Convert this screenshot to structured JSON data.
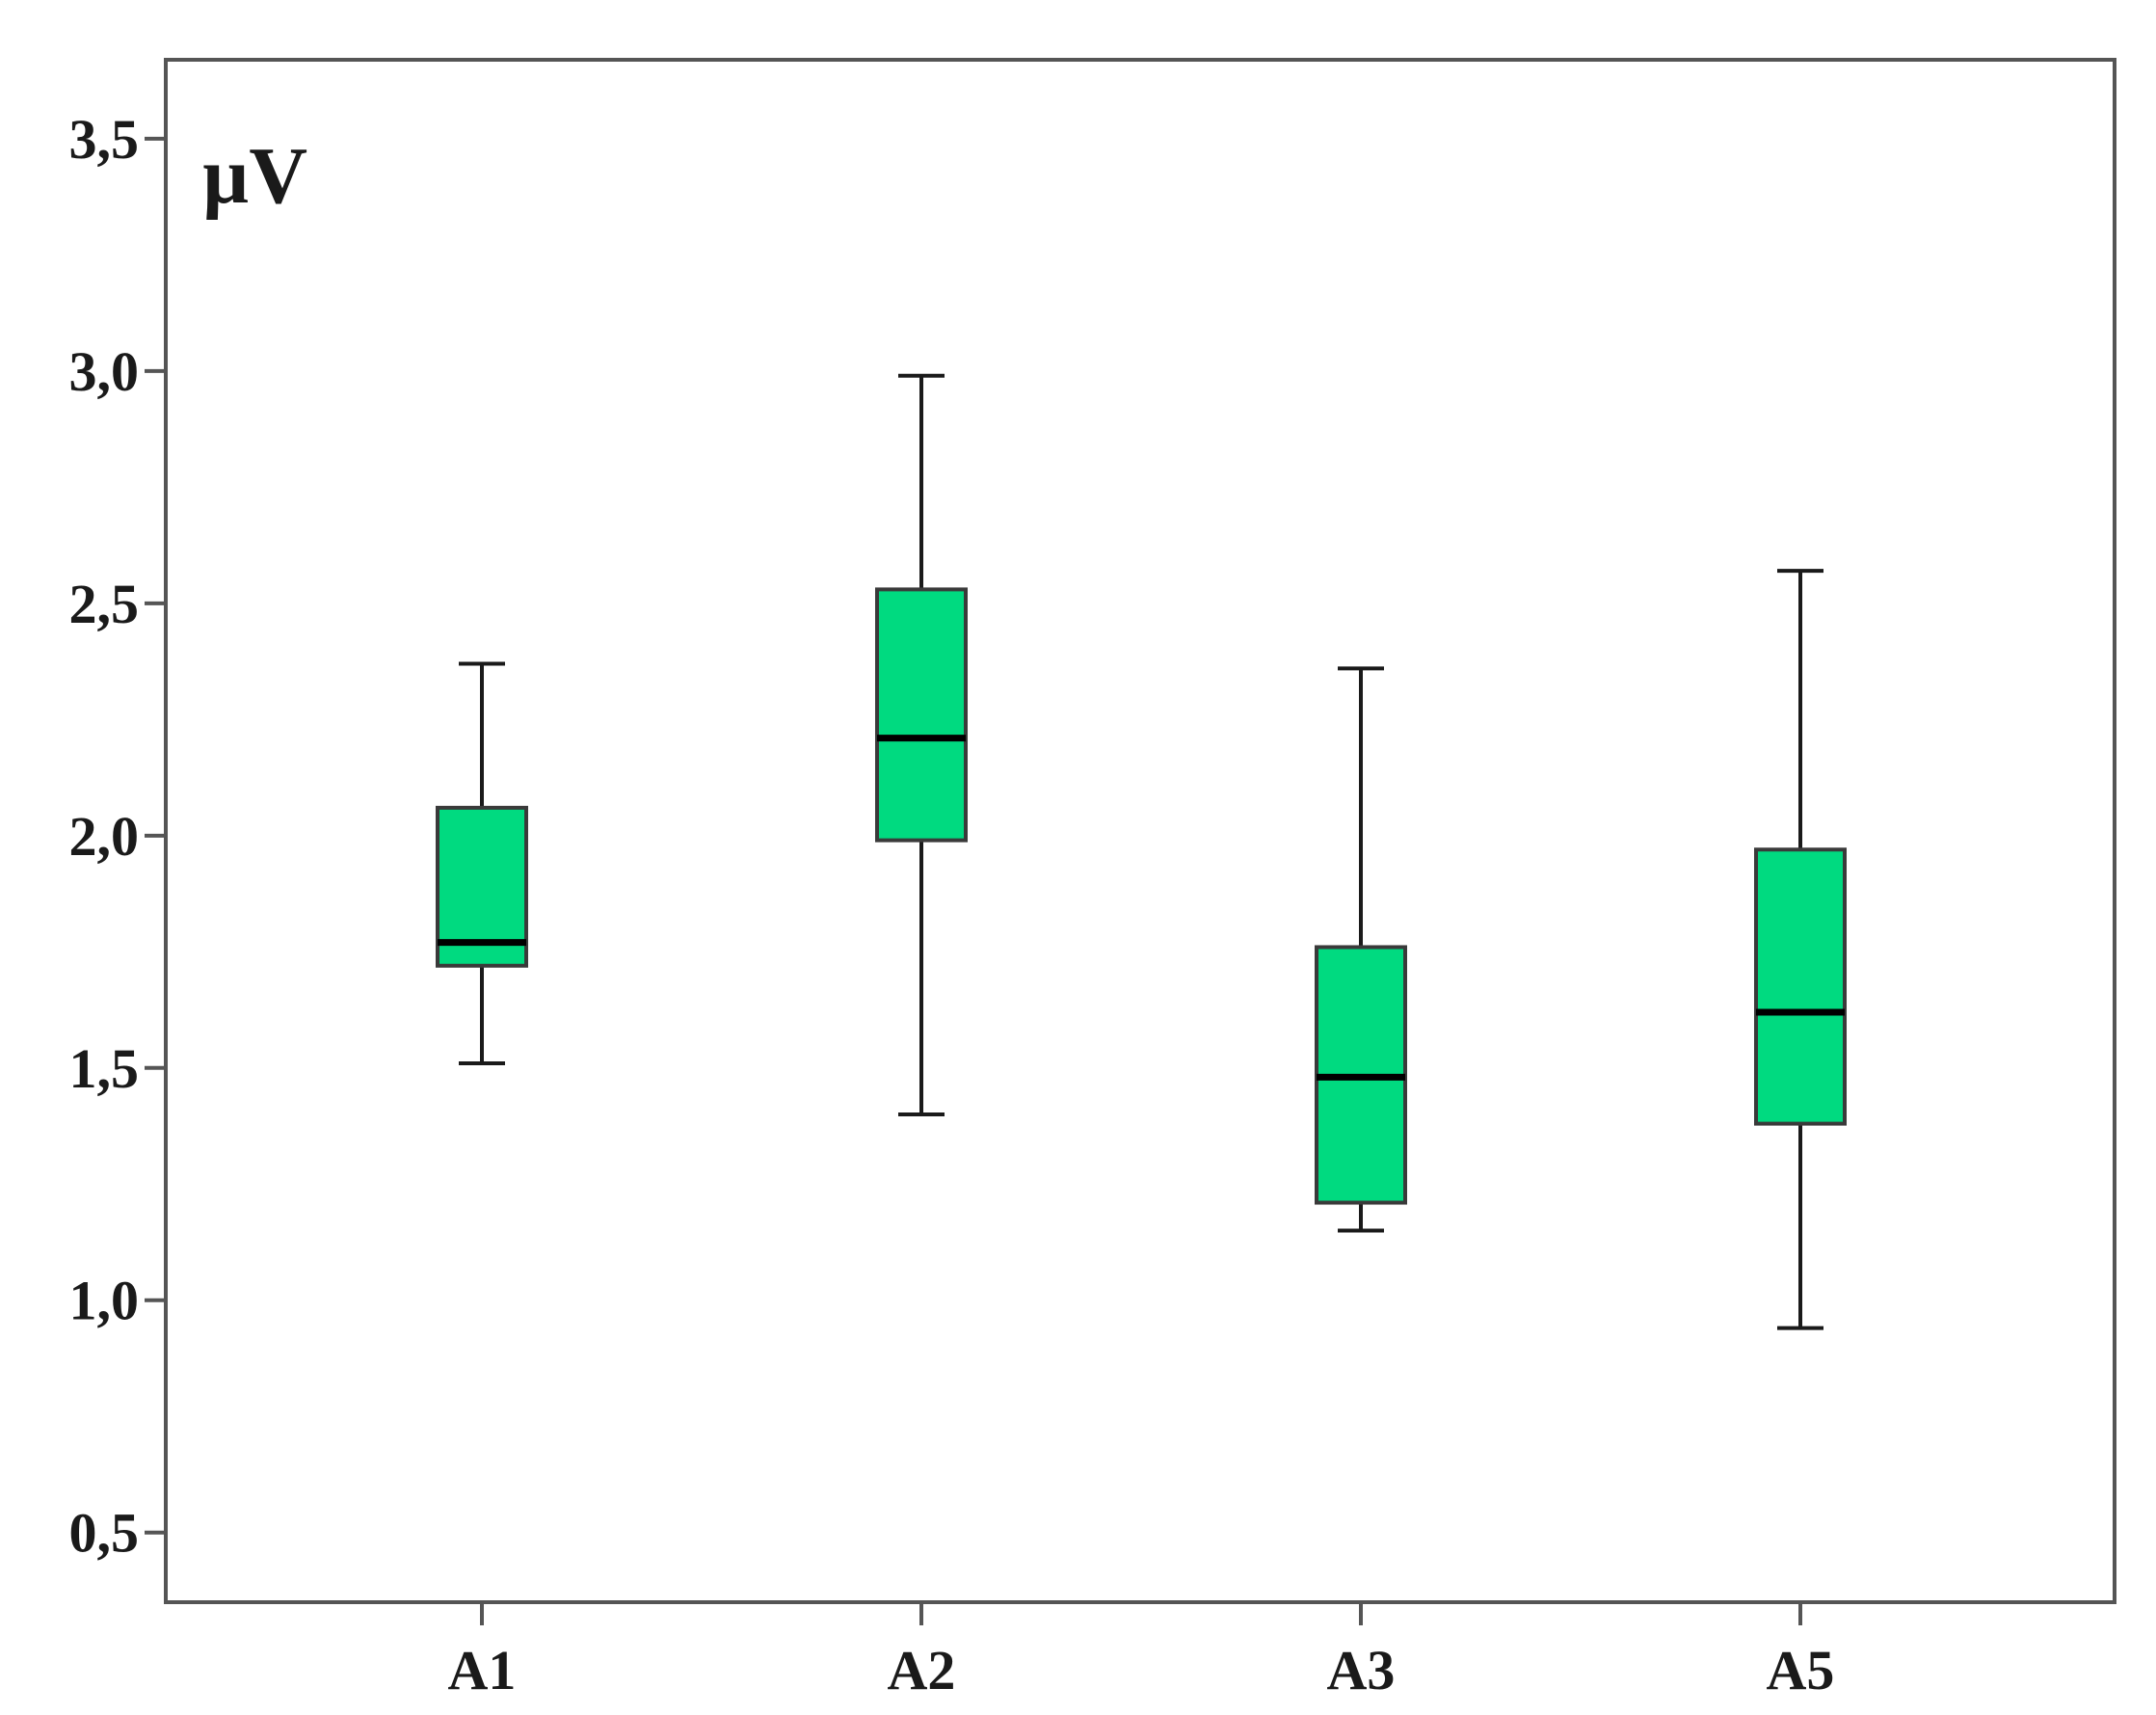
{
  "chart_data": {
    "type": "boxplot",
    "title": "",
    "xlabel": "",
    "ylabel": "",
    "unit_label": "µV",
    "ylim": [
      0.35,
      3.67
    ],
    "y_ticks": [
      {
        "value": 0.5,
        "label": "0,5"
      },
      {
        "value": 1.0,
        "label": "1,0"
      },
      {
        "value": 1.5,
        "label": "1,5"
      },
      {
        "value": 2.0,
        "label": "2,0"
      },
      {
        "value": 2.5,
        "label": "2,5"
      },
      {
        "value": 3.0,
        "label": "3,0"
      },
      {
        "value": 3.5,
        "label": "3,5"
      }
    ],
    "categories": [
      "A1",
      "A2",
      "A3",
      "A5"
    ],
    "boxes": [
      {
        "category": "A1",
        "min": 1.51,
        "q1": 1.72,
        "median": 1.77,
        "q3": 2.06,
        "max": 2.37
      },
      {
        "category": "A2",
        "min": 1.4,
        "q1": 1.99,
        "median": 2.21,
        "q3": 2.53,
        "max": 2.99
      },
      {
        "category": "A3",
        "min": 1.15,
        "q1": 1.21,
        "median": 1.48,
        "q3": 1.76,
        "max": 2.36
      },
      {
        "category": "A5",
        "min": 0.94,
        "q1": 1.38,
        "median": 1.62,
        "q3": 1.97,
        "max": 2.57
      }
    ],
    "grid": false,
    "legend": "none",
    "colors": {
      "box_fill": "#00DA80",
      "box_stroke": "#3a3a3a",
      "median": "#000000",
      "whisker": "#1a1a1a",
      "axis": "#555555"
    }
  }
}
